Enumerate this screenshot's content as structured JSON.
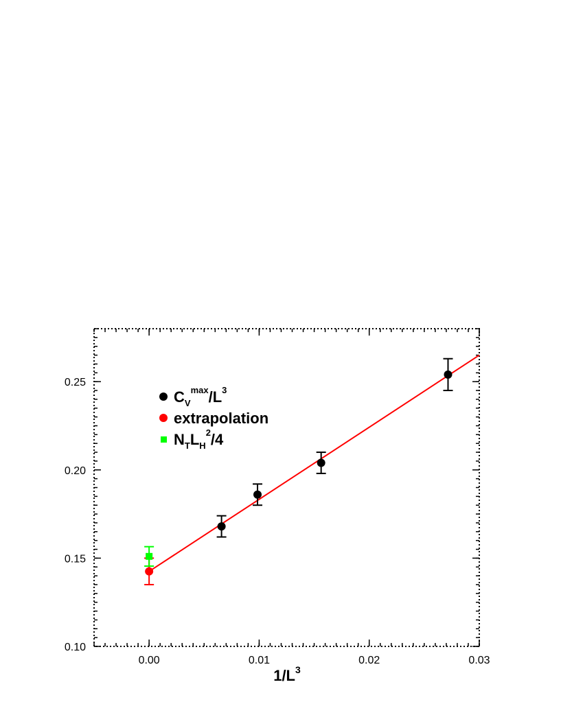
{
  "chart_data": {
    "type": "scatter",
    "xlabel": {
      "base": "1/L",
      "sup": "3"
    },
    "ylabel": "",
    "xlim": [
      -0.005,
      0.03
    ],
    "ylim": [
      0.1,
      0.28
    ],
    "x_ticks": [
      0.0,
      0.01,
      0.02,
      0.03
    ],
    "x_tick_labels": [
      "0.00",
      "0.01",
      "0.02",
      "0.03"
    ],
    "y_ticks": [
      0.1,
      0.15,
      0.2,
      0.25
    ],
    "y_tick_labels": [
      "0.10",
      "0.15",
      "0.20",
      "0.25"
    ],
    "grid": false,
    "legend_position": "upper-left",
    "series": [
      {
        "key": "cv",
        "color": "#000000",
        "marker": "circle",
        "label": {
          "parts": [
            {
              "text": "C",
              "style": "normal"
            },
            {
              "text": "V",
              "style": "sub"
            },
            {
              "text": "max",
              "style": "sup"
            },
            {
              "text": "/L",
              "style": "normal"
            },
            {
              "text": "3",
              "style": "sup"
            }
          ]
        },
        "points": [
          {
            "x": 0.00658,
            "y": 0.168,
            "err": 0.006
          },
          {
            "x": 0.00985,
            "y": 0.186,
            "err": 0.006
          },
          {
            "x": 0.01563,
            "y": 0.204,
            "err": 0.006
          },
          {
            "x": 0.02716,
            "y": 0.254,
            "err": 0.009
          }
        ]
      },
      {
        "key": "extrapolation",
        "color": "#ff0000",
        "marker": "circle",
        "label": {
          "parts": [
            {
              "text": "extrapolation",
              "style": "normal"
            }
          ]
        },
        "points": [
          {
            "x": 0.0,
            "y": 0.1425,
            "err": 0.0075
          }
        ]
      },
      {
        "key": "ntlh",
        "color": "#00ff00",
        "marker": "square",
        "label": {
          "parts": [
            {
              "text": "N",
              "style": "normal"
            },
            {
              "text": "T",
              "style": "sub"
            },
            {
              "text": "L",
              "style": "normal"
            },
            {
              "text": "H",
              "style": "sub"
            },
            {
              "text": "2",
              "style": "sup"
            },
            {
              "text": "/4",
              "style": "normal"
            }
          ]
        },
        "points": [
          {
            "x": 0.0,
            "y": 0.151,
            "err": 0.0055
          }
        ]
      }
    ],
    "fit_line": {
      "color": "#ff0000",
      "x": [
        0.0,
        0.03
      ],
      "y": [
        0.1425,
        0.265
      ]
    }
  }
}
